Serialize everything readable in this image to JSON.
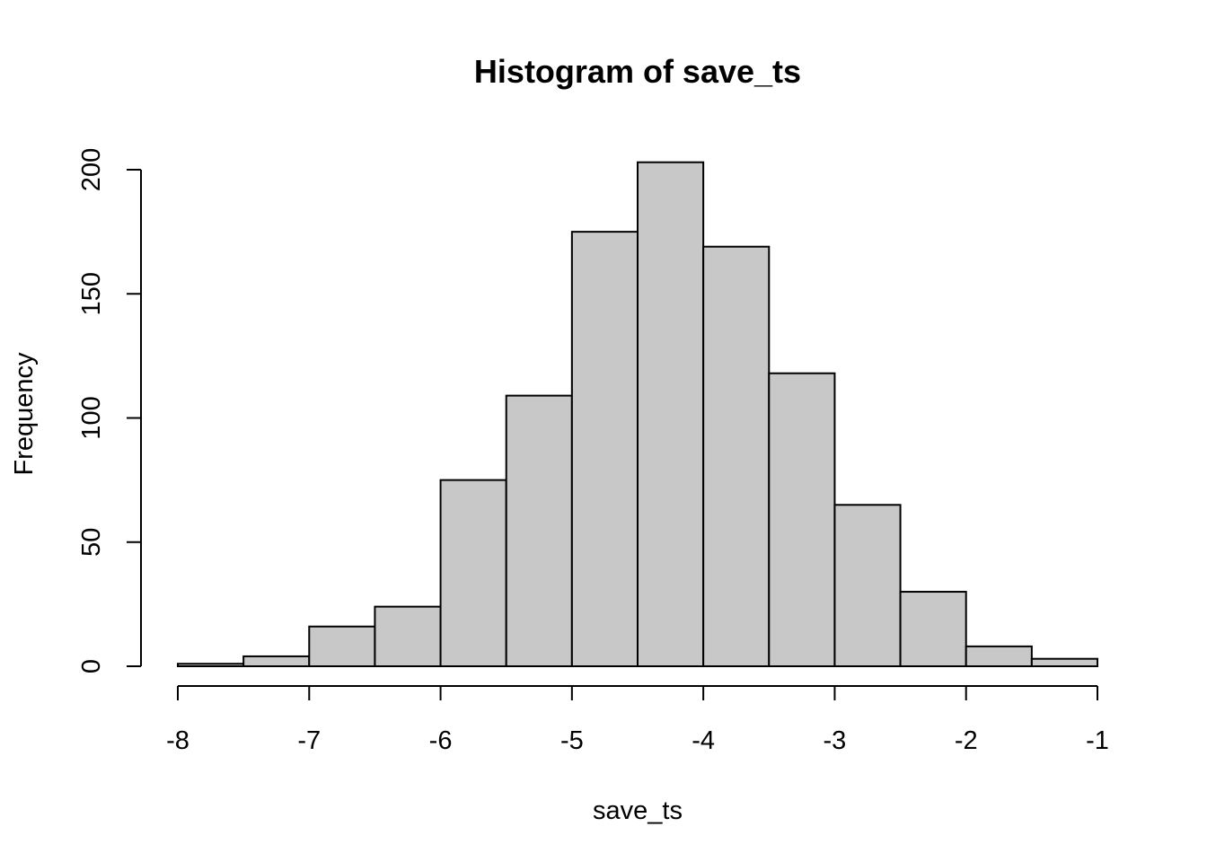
{
  "chart_data": {
    "type": "bar",
    "title": "Histogram of save_ts",
    "xlabel": "save_ts",
    "ylabel": "Frequency",
    "bin_edges": [
      -8,
      -7.5,
      -7,
      -6.5,
      -6,
      -5.5,
      -5,
      -4.5,
      -4,
      -3.5,
      -3,
      -2.5,
      -2,
      -1.5,
      -1
    ],
    "values": [
      1,
      4,
      16,
      24,
      75,
      109,
      175,
      203,
      169,
      118,
      65,
      30,
      8,
      3
    ],
    "xlim": [
      -8,
      -1
    ],
    "ylim": [
      0,
      200
    ],
    "x_ticks": [
      -8,
      -7,
      -6,
      -5,
      -4,
      -3,
      -2,
      -1
    ],
    "x_tick_labels": [
      "-8",
      "-7",
      "-6",
      "-5",
      "-4",
      "-3",
      "-2",
      "-1"
    ],
    "y_ticks": [
      0,
      50,
      100,
      150,
      200
    ],
    "y_tick_labels": [
      "0",
      "50",
      "100",
      "150",
      "200"
    ],
    "bar_color": "#c8c8c8",
    "grid": false,
    "legend": "none"
  }
}
